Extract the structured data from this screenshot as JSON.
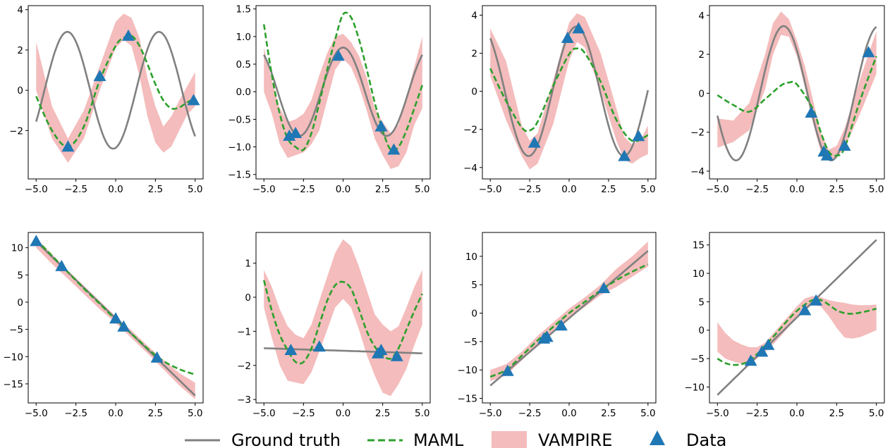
{
  "colors": {
    "ground_truth": "#808080",
    "maml": "#2ca02c",
    "vampire": "#f4bcbc",
    "data": "#1f77b4"
  },
  "legend": {
    "position": "bottom-center",
    "items": [
      {
        "key": "ground_truth",
        "label": "Ground truth",
        "style": "solid-line"
      },
      {
        "key": "maml",
        "label": "MAML",
        "style": "dashed-line"
      },
      {
        "key": "vampire",
        "label": "VAMPIRE",
        "style": "filled-band"
      },
      {
        "key": "data",
        "label": "Data",
        "style": "triangle-marker"
      }
    ]
  },
  "chart_data": [
    {
      "type": "line",
      "xlim": [
        -5.5,
        5.5
      ],
      "ylim": [
        -4.4,
        4.2
      ],
      "xticks": [
        -5.0,
        -2.5,
        0.0,
        2.5,
        5.0
      ],
      "xtick_labels": [
        "−5.0",
        "−2.5",
        "0.0",
        "2.5",
        "5.0"
      ],
      "yticks": [
        -2,
        0,
        2,
        4
      ],
      "ytick_labels": [
        "−2",
        "0",
        "2",
        "4"
      ],
      "ground_truth": {
        "kind": "sine",
        "amplitude": 2.9,
        "frequency": 1.09,
        "phase": -1.4,
        "offset": 0,
        "x_range": [
          -5,
          5
        ]
      },
      "maml": {
        "x": [
          -5.0,
          -4.0,
          -3.0,
          -2.0,
          -1.0,
          0.0,
          0.5,
          1.0,
          1.5,
          2.0,
          2.5,
          3.0,
          3.5,
          4.0,
          4.5,
          5.0
        ],
        "y": [
          -0.3,
          -2.0,
          -2.8,
          -1.8,
          0.5,
          2.2,
          2.6,
          2.7,
          2.2,
          1.3,
          0.3,
          -0.5,
          -0.9,
          -0.85,
          -0.6,
          -0.4
        ]
      },
      "vampire": {
        "x": [
          -5.0,
          -4.0,
          -3.0,
          -2.0,
          -1.0,
          0.0,
          0.5,
          1.0,
          1.5,
          2.0,
          2.5,
          3.0,
          3.5,
          4.0,
          4.5,
          5.0
        ],
        "lower": [
          0.0,
          -2.4,
          -3.6,
          -2.4,
          0.0,
          2.1,
          2.5,
          2.2,
          0.7,
          -1.3,
          -2.6,
          -3.1,
          -2.8,
          -2.0,
          -1.2,
          -0.8
        ],
        "upper": [
          2.4,
          -0.8,
          -2.4,
          -1.0,
          1.2,
          3.4,
          3.8,
          3.6,
          2.6,
          0.6,
          -0.8,
          -1.8,
          -1.3,
          -0.5,
          0.2,
          0.9
        ]
      },
      "data": {
        "x": [
          -3.0,
          -1.0,
          0.8,
          4.9
        ],
        "y": [
          -2.8,
          0.7,
          2.7,
          -0.5
        ]
      }
    },
    {
      "type": "line",
      "xlim": [
        -5.5,
        5.5
      ],
      "ylim": [
        -1.58,
        1.56
      ],
      "xticks": [
        -5.0,
        -2.5,
        0.0,
        2.5,
        5.0
      ],
      "xtick_labels": [
        "−5.0",
        "−2.5",
        "0.0",
        "2.5",
        "5.0"
      ],
      "yticks": [
        -1.5,
        -1.0,
        -0.5,
        0.0,
        0.5,
        1.0,
        1.5
      ],
      "ytick_labels": [
        "−1.5",
        "−1.0",
        "−0.5",
        "0.0",
        "0.5",
        "1.0",
        "1.5"
      ],
      "ground_truth": {
        "kind": "sine",
        "amplitude": 0.8,
        "frequency": 1.14,
        "phase": 1.57,
        "offset": 0,
        "x_range": [
          -5,
          5
        ]
      },
      "maml": {
        "x": [
          -5.0,
          -4.5,
          -4.0,
          -3.5,
          -3.0,
          -2.5,
          -2.0,
          -1.5,
          -1.0,
          -0.5,
          0.0,
          0.5,
          1.0,
          1.5,
          2.0,
          2.5,
          3.0,
          3.5,
          4.0,
          4.5,
          5.0
        ],
        "y": [
          1.22,
          0.3,
          -0.4,
          -0.85,
          -1.0,
          -1.05,
          -0.75,
          -0.2,
          0.4,
          0.95,
          1.4,
          1.35,
          0.95,
          0.4,
          -0.2,
          -0.7,
          -1.05,
          -1.0,
          -0.7,
          -0.3,
          0.12
        ]
      },
      "vampire": {
        "x": [
          -5.0,
          -4.5,
          -4.0,
          -3.5,
          -3.0,
          -2.5,
          -2.0,
          -1.5,
          -1.0,
          -0.5,
          0.0,
          0.5,
          1.0,
          1.5,
          2.0,
          2.5,
          3.0,
          3.5,
          4.0,
          4.5,
          5.0
        ],
        "lower": [
          0.0,
          -0.4,
          -0.95,
          -1.2,
          -1.15,
          -1.1,
          -0.95,
          -0.7,
          -0.15,
          0.4,
          0.6,
          0.45,
          0.1,
          -0.35,
          -0.85,
          -1.15,
          -1.4,
          -1.35,
          -1.1,
          -0.6,
          -0.3
        ],
        "upper": [
          0.8,
          0.2,
          -0.3,
          -0.55,
          -0.5,
          -0.4,
          -0.15,
          0.3,
          0.7,
          1.0,
          1.05,
          0.9,
          0.65,
          0.25,
          -0.3,
          -0.55,
          -0.75,
          -0.6,
          -0.1,
          0.45,
          1.0
        ]
      },
      "data": {
        "x": [
          -3.4,
          -3.0,
          -0.3,
          2.4,
          3.2
        ],
        "y": [
          -0.8,
          -0.75,
          0.65,
          -0.63,
          -1.05
        ]
      }
    },
    {
      "type": "line",
      "xlim": [
        -5.5,
        5.5
      ],
      "ylim": [
        -4.6,
        4.5
      ],
      "xticks": [
        -5.0,
        -2.5,
        0.0,
        2.5,
        5.0
      ],
      "xtick_labels": [
        "−5.0",
        "−2.5",
        "0.0",
        "2.5",
        "5.0"
      ],
      "yticks": [
        -4,
        -2,
        0,
        2,
        4
      ],
      "ytick_labels": [
        "−4",
        "−2",
        "0",
        "2",
        "4"
      ],
      "ground_truth": {
        "kind": "sine",
        "amplitude": 3.4,
        "frequency": 1.04,
        "phase": 1.1,
        "offset": 0,
        "x_range": [
          -5,
          5
        ]
      },
      "maml": {
        "x": [
          -5.0,
          -4.0,
          -3.0,
          -2.5,
          -2.0,
          -1.0,
          0.0,
          0.5,
          1.0,
          2.0,
          3.0,
          4.0,
          5.0
        ],
        "y": [
          1.2,
          -0.5,
          -1.9,
          -2.05,
          -1.6,
          0.3,
          1.95,
          2.25,
          2.0,
          0.5,
          -1.5,
          -2.6,
          -2.3
        ]
      },
      "vampire": {
        "x": [
          -5.0,
          -4.0,
          -3.0,
          -2.5,
          -2.0,
          -1.0,
          0.0,
          0.5,
          1.0,
          2.0,
          3.0,
          3.5,
          4.0,
          4.5,
          5.0
        ],
        "lower": [
          0.8,
          -1.5,
          -3.4,
          -4.1,
          -3.8,
          -1.7,
          1.6,
          2.6,
          2.3,
          0.0,
          -2.6,
          -3.6,
          -3.8,
          -3.5,
          -3.3
        ],
        "upper": [
          3.3,
          1.6,
          -1.8,
          -2.6,
          -2.2,
          0.6,
          3.6,
          4.1,
          3.9,
          2.0,
          -0.9,
          -2.4,
          -2.8,
          -2.6,
          -1.8
        ]
      },
      "data": {
        "x": [
          -2.2,
          -0.1,
          0.6,
          3.5,
          4.4
        ],
        "y": [
          -2.7,
          2.8,
          3.3,
          -3.4,
          -2.35
        ]
      }
    },
    {
      "type": "line",
      "xlim": [
        -5.5,
        5.5
      ],
      "ylim": [
        -4.4,
        4.5
      ],
      "xticks": [
        -5.0,
        -2.5,
        0.0,
        2.5,
        5.0
      ],
      "xtick_labels": [
        "−5.0",
        "−2.5",
        "0.0",
        "2.5",
        "5.0"
      ],
      "yticks": [
        -4,
        -2,
        0,
        2,
        4
      ],
      "ytick_labels": [
        "−4",
        "−2",
        "0",
        "2",
        "4"
      ],
      "ground_truth": {
        "kind": "sine",
        "amplitude": 3.45,
        "frequency": 1.05,
        "phase": 2.45,
        "offset": 0,
        "x_range": [
          -5,
          5
        ]
      },
      "maml": {
        "x": [
          -5.0,
          -4.0,
          -3.0,
          -2.0,
          -1.0,
          -0.5,
          0.0,
          1.0,
          1.5,
          2.0,
          2.5,
          3.0,
          4.0,
          5.0
        ],
        "y": [
          -0.1,
          -0.6,
          -0.95,
          -0.3,
          0.4,
          0.55,
          0.45,
          -0.8,
          -2.0,
          -3.0,
          -3.2,
          -2.8,
          -0.3,
          1.9
        ]
      },
      "vampire": {
        "x": [
          -5.0,
          -4.0,
          -3.0,
          -2.0,
          -1.5,
          -1.0,
          -0.5,
          0.0,
          0.5,
          1.0,
          1.5,
          2.0,
          2.5,
          3.0,
          4.0,
          5.0
        ],
        "lower": [
          -2.8,
          -2.5,
          -1.9,
          0.2,
          2.0,
          3.0,
          2.9,
          1.9,
          0.3,
          -1.5,
          -3.0,
          -3.4,
          -3.3,
          -2.8,
          -1.0,
          1.0
        ],
        "upper": [
          -1.3,
          -1.4,
          -0.5,
          2.0,
          3.6,
          4.2,
          3.8,
          2.7,
          1.4,
          -0.3,
          -2.0,
          -2.9,
          -2.7,
          -1.8,
          0.8,
          3.2
        ]
      },
      "data": {
        "x": [
          0.9,
          1.7,
          1.9,
          3.0,
          4.5
        ],
        "y": [
          -1.0,
          -3.0,
          -3.2,
          -2.7,
          2.1
        ]
      }
    },
    {
      "type": "line",
      "xlim": [
        -5.5,
        5.5
      ],
      "ylim": [
        -18.5,
        12.8
      ],
      "xticks": [
        -5.0,
        -2.5,
        0.0,
        2.5,
        5.0
      ],
      "xtick_labels": [
        "−5.0",
        "−2.5",
        "0.0",
        "2.5",
        "5.0"
      ],
      "yticks": [
        -15,
        -10,
        -5,
        0,
        5,
        10
      ],
      "ytick_labels": [
        "−15",
        "−10",
        "−5",
        "0",
        "5",
        "10"
      ],
      "ground_truth": {
        "kind": "linear",
        "slope": -2.83,
        "intercept": -3.0,
        "x_range": [
          -5,
          5
        ]
      },
      "maml": {
        "x": [
          -5.0,
          -4.0,
          -3.0,
          -2.0,
          -1.0,
          0.0,
          1.0,
          2.0,
          3.0,
          4.0,
          5.0
        ],
        "y": [
          11.5,
          8.5,
          5.5,
          2.5,
          -0.3,
          -3.2,
          -5.8,
          -8.5,
          -10.8,
          -12.3,
          -13.3
        ]
      },
      "vampire": {
        "x": [
          -5.0,
          -4.0,
          -3.0,
          -2.0,
          -1.0,
          0.0,
          1.0,
          2.0,
          3.0,
          4.0,
          5.0
        ],
        "lower": [
          10.0,
          7.0,
          4.3,
          1.5,
          -1.3,
          -3.8,
          -6.6,
          -9.4,
          -12.3,
          -15.3,
          -17.8
        ],
        "upper": [
          11.8,
          8.8,
          5.8,
          3.0,
          0.2,
          -2.6,
          -5.2,
          -8.0,
          -10.6,
          -13.0,
          -14.8
        ]
      },
      "data": {
        "x": [
          -5.0,
          -3.4,
          0.0,
          0.5,
          2.6
        ],
        "y": [
          11.2,
          6.6,
          -3.0,
          -4.5,
          -10.2
        ]
      }
    },
    {
      "type": "line",
      "xlim": [
        -5.5,
        5.5
      ],
      "ylim": [
        -3.1,
        1.9
      ],
      "xticks": [
        -5.0,
        -2.5,
        0.0,
        2.5,
        5.0
      ],
      "xtick_labels": [
        "−5.0",
        "−2.5",
        "0.0",
        "2.5",
        "5.0"
      ],
      "yticks": [
        -3,
        -2,
        -1,
        0,
        1
      ],
      "ytick_labels": [
        "−3",
        "−2",
        "−1",
        "0",
        "1"
      ],
      "ground_truth": {
        "kind": "linear",
        "slope": -0.015,
        "intercept": -1.57,
        "x_range": [
          -5,
          5
        ]
      },
      "maml": {
        "x": [
          -5.0,
          -4.5,
          -4.0,
          -3.5,
          -3.0,
          -2.5,
          -2.0,
          -1.5,
          -1.0,
          -0.5,
          0.0,
          0.5,
          1.0,
          1.5,
          2.0,
          2.5,
          3.0,
          3.5,
          4.0,
          4.5,
          5.0
        ],
        "y": [
          0.5,
          -0.4,
          -1.1,
          -1.55,
          -1.9,
          -1.9,
          -1.5,
          -0.8,
          -0.1,
          0.35,
          0.45,
          0.25,
          -0.35,
          -1.0,
          -1.45,
          -1.7,
          -1.8,
          -1.5,
          -0.95,
          -0.4,
          0.1
        ]
      },
      "vampire": {
        "x": [
          -5.0,
          -4.5,
          -4.0,
          -3.5,
          -3.0,
          -2.5,
          -2.0,
          -1.5,
          -1.0,
          -0.5,
          0.0,
          0.5,
          1.0,
          1.5,
          2.0,
          2.5,
          3.0,
          3.5,
          4.0,
          4.5,
          5.0
        ],
        "lower": [
          -0.3,
          -1.2,
          -2.0,
          -2.45,
          -2.5,
          -2.55,
          -2.2,
          -1.6,
          -0.95,
          -0.3,
          -0.05,
          -0.3,
          -0.95,
          -1.7,
          -2.3,
          -2.8,
          -2.9,
          -2.55,
          -2.1,
          -1.4,
          -0.8
        ],
        "upper": [
          0.8,
          0.3,
          -0.35,
          -0.85,
          -1.1,
          -1.2,
          -0.8,
          -0.1,
          0.6,
          1.3,
          1.7,
          1.5,
          0.9,
          0.2,
          -0.5,
          -0.8,
          -1.0,
          -0.85,
          -0.3,
          0.3,
          0.8
        ]
      },
      "data": {
        "x": [
          -3.3,
          -1.5,
          2.2,
          2.4,
          3.4
        ],
        "y": [
          -1.55,
          -1.45,
          -1.65,
          -1.55,
          -1.73
        ]
      }
    },
    {
      "type": "line",
      "xlim": [
        -5.5,
        5.5
      ],
      "ylim": [
        -15.8,
        14.2
      ],
      "xticks": [
        -5.0,
        -2.5,
        0.0,
        2.5,
        5.0
      ],
      "xtick_labels": [
        "−5.0",
        "−2.5",
        "0.0",
        "2.5",
        "5.0"
      ],
      "yticks": [
        -15,
        -10,
        -5,
        0,
        5,
        10
      ],
      "ytick_labels": [
        "−15",
        "−10",
        "−5",
        "0",
        "5",
        "10"
      ],
      "ground_truth": {
        "kind": "linear",
        "slope": 2.37,
        "intercept": -0.9,
        "x_range": [
          -5,
          5
        ]
      },
      "maml": {
        "x": [
          -5.0,
          -4.0,
          -3.0,
          -2.0,
          -1.0,
          0.0,
          1.0,
          2.0,
          3.0,
          4.0,
          5.0
        ],
        "y": [
          -11.2,
          -10.0,
          -7.5,
          -4.8,
          -2.4,
          0.0,
          2.0,
          4.0,
          5.8,
          7.3,
          8.6
        ]
      },
      "vampire": {
        "x": [
          -5.0,
          -4.0,
          -3.0,
          -2.0,
          -1.0,
          0.0,
          1.0,
          2.0,
          3.0,
          4.0,
          5.0
        ],
        "lower": [
          -12.0,
          -11.0,
          -8.3,
          -5.6,
          -3.2,
          -0.8,
          1.1,
          3.2,
          4.6,
          6.4,
          8.2
        ],
        "upper": [
          -10.0,
          -9.0,
          -6.8,
          -4.0,
          -1.6,
          0.8,
          2.8,
          5.0,
          7.8,
          10.0,
          12.6
        ]
      },
      "data": {
        "x": [
          -3.9,
          -1.6,
          -1.4,
          -0.5,
          2.2
        ],
        "y": [
          -10.2,
          -4.5,
          -4.2,
          -2.2,
          4.4
        ]
      }
    },
    {
      "type": "line",
      "xlim": [
        -5.5,
        5.5
      ],
      "ylim": [
        -12.8,
        17.2
      ],
      "xticks": [
        -5.0,
        -2.5,
        0.0,
        2.5,
        5.0
      ],
      "xtick_labels": [
        "−5.0",
        "−2.5",
        "0.0",
        "2.5",
        "5.0"
      ],
      "yticks": [
        -10,
        -5,
        0,
        5,
        10,
        15
      ],
      "ytick_labels": [
        "−10",
        "−5",
        "0",
        "5",
        "10",
        "15"
      ],
      "ground_truth": {
        "kind": "linear",
        "slope": 2.73,
        "intercept": 2.25,
        "x_range": [
          -5,
          5
        ]
      },
      "maml": {
        "x": [
          -5.0,
          -4.5,
          -4.0,
          -3.5,
          -3.0,
          -2.5,
          -2.0,
          -1.5,
          -1.0,
          -0.5,
          0.0,
          0.5,
          1.0,
          1.5,
          2.0,
          2.5,
          3.0,
          3.5,
          4.0,
          4.5,
          5.0
        ],
        "y": [
          -5.0,
          -5.8,
          -6.1,
          -6.0,
          -5.4,
          -4.2,
          -2.7,
          -1.2,
          0.4,
          2.0,
          3.4,
          4.5,
          5.3,
          5.3,
          4.5,
          3.5,
          3.0,
          2.9,
          3.1,
          3.4,
          3.8
        ]
      },
      "vampire": {
        "x": [
          -5.0,
          -4.5,
          -4.0,
          -3.5,
          -3.0,
          -2.5,
          -2.0,
          -1.5,
          -1.0,
          -0.5,
          0.0,
          0.5,
          1.0,
          1.5,
          2.0,
          2.5,
          3.0,
          3.5,
          4.0,
          4.5,
          5.0
        ],
        "lower": [
          -3.8,
          -5.0,
          -5.5,
          -5.9,
          -6.0,
          -5.0,
          -3.8,
          -2.5,
          -1.0,
          0.6,
          2.2,
          3.5,
          4.5,
          4.2,
          2.5,
          0.4,
          -1.3,
          -1.5,
          -1.2,
          -0.6,
          0.0
        ],
        "upper": [
          1.4,
          -0.5,
          -1.8,
          -2.5,
          -3.0,
          -3.0,
          -2.2,
          -0.6,
          1.0,
          2.6,
          4.2,
          5.6,
          6.0,
          5.8,
          5.3,
          5.0,
          4.8,
          4.5,
          4.4,
          4.4,
          4.5
        ]
      },
      "data": {
        "x": [
          -2.9,
          -2.2,
          -1.8,
          0.5,
          1.2
        ],
        "y": [
          -5.4,
          -3.8,
          -2.6,
          3.5,
          5.2
        ]
      }
    }
  ]
}
